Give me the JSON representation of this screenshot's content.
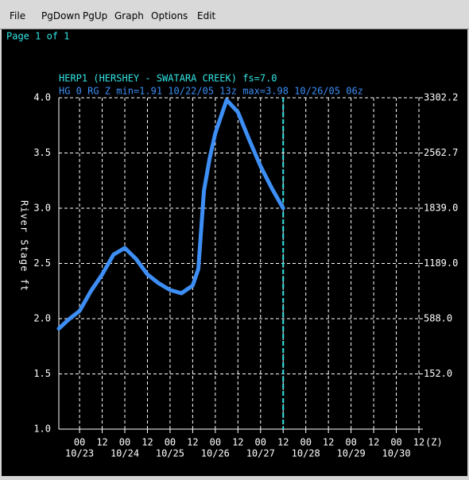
{
  "menu": [
    "File",
    "PgDown",
    "PgUp",
    "Graph",
    "Options",
    "Edit"
  ],
  "page_label": "Page 1 of 1",
  "chart_data": {
    "type": "line",
    "title": "HERP1 (HERSHEY - SWATARA CREEK) fs=7.0",
    "subtitle": "HG 0 RG Z min=1.91 10/22/05 13z max=3.98 10/26/05 06z",
    "ylabel": "River Stage ft",
    "x_unit": "(Z)",
    "x": [
      "10/22 13z",
      "10/22 18z",
      "10/23 00z",
      "10/23 06z",
      "10/23 12z",
      "10/23 18z",
      "10/24 00z",
      "10/24 06z",
      "10/24 12z",
      "10/24 18z",
      "10/25 00z",
      "10/25 06z",
      "10/25 12z",
      "10/25 15z",
      "10/25 18z",
      "10/25 21z",
      "10/26 00z",
      "10/26 06z",
      "10/26 12z",
      "10/26 18z",
      "10/27 00z",
      "10/27 06z",
      "10/27 12z"
    ],
    "series": [
      {
        "color": "#3d8ef5",
        "values": [
          1.91,
          1.99,
          2.07,
          2.25,
          2.4,
          2.58,
          2.64,
          2.54,
          2.4,
          2.32,
          2.26,
          2.23,
          2.3,
          2.45,
          3.16,
          3.45,
          3.68,
          3.98,
          3.87,
          3.62,
          3.38,
          3.18,
          3.0
        ]
      }
    ],
    "marker_x": "10/27 12z",
    "xlim": [
      "10/22 13z",
      "10/30 12z"
    ],
    "xticks": [
      {
        "value": "10/23 00z",
        "label": "00"
      },
      {
        "value": "10/23 12z",
        "label": "12"
      },
      {
        "value": "10/24 00z",
        "label": "00"
      },
      {
        "value": "10/24 12z",
        "label": "12"
      },
      {
        "value": "10/25 00z",
        "label": "00"
      },
      {
        "value": "10/25 12z",
        "label": "12"
      },
      {
        "value": "10/26 00z",
        "label": "00"
      },
      {
        "value": "10/26 12z",
        "label": "12"
      },
      {
        "value": "10/27 00z",
        "label": "00"
      },
      {
        "value": "10/27 12z",
        "label": "12"
      },
      {
        "value": "10/28 00z",
        "label": "00"
      },
      {
        "value": "10/28 12z",
        "label": "12"
      },
      {
        "value": "10/29 00z",
        "label": "00"
      },
      {
        "value": "10/29 12z",
        "label": "12"
      },
      {
        "value": "10/30 00z",
        "label": "00"
      },
      {
        "value": "10/30 12z",
        "label": "12"
      }
    ],
    "day_labels": [
      "10/23",
      "10/24",
      "10/25",
      "10/26",
      "10/27",
      "10/28",
      "10/29",
      "10/30"
    ],
    "ylim": [
      1,
      4
    ],
    "yticks": [
      {
        "value": 1,
        "label": "1.0"
      },
      {
        "value": 1.5,
        "label": "1.5"
      },
      {
        "value": 2,
        "label": "2.0"
      },
      {
        "value": 2.5,
        "label": "2.5"
      },
      {
        "value": 3,
        "label": "3.0"
      },
      {
        "value": 3.5,
        "label": "3.5"
      },
      {
        "value": 4,
        "label": "4.0"
      }
    ],
    "y2ticks": [
      null,
      {
        "value": 152.0,
        "label": "152.0"
      },
      {
        "value": 588.0,
        "label": "588.0"
      },
      {
        "value": 1189.0,
        "label": "1189.0"
      },
      {
        "value": 1839.0,
        "label": "1839.0"
      },
      {
        "value": 2562.7,
        "label": "2562.7"
      },
      {
        "value": 3302.2,
        "label": "3302.2"
      }
    ],
    "grid": true
  }
}
